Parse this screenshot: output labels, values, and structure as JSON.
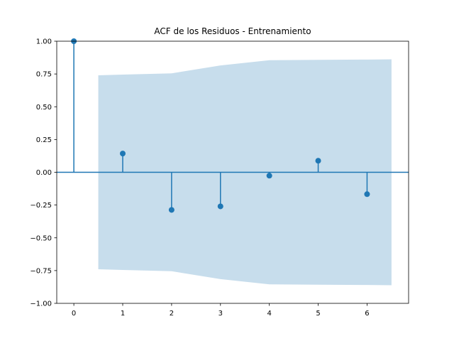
{
  "chart_data": {
    "type": "stem",
    "title": "ACF de los Residuos - Entrenamiento",
    "xlabel": "",
    "ylabel": "",
    "xlim": [
      -0.35,
      6.85
    ],
    "ylim": [
      -1.0,
      1.0
    ],
    "xticks": [
      0,
      1,
      2,
      3,
      4,
      5,
      6
    ],
    "xtick_labels": [
      "0",
      "1",
      "2",
      "3",
      "4",
      "5",
      "6"
    ],
    "yticks": [
      -1.0,
      -0.75,
      -0.5,
      -0.25,
      0.0,
      0.25,
      0.5,
      0.75,
      1.0
    ],
    "ytick_labels": [
      "−1.00",
      "−0.75",
      "−0.50",
      "−0.25",
      "0.00",
      "0.25",
      "0.50",
      "0.75",
      "1.00"
    ],
    "lags": [
      0,
      1,
      2,
      3,
      4,
      5,
      6
    ],
    "values": [
      1.0,
      0.143,
      -0.287,
      -0.26,
      -0.026,
      0.088,
      -0.167
    ],
    "confint": {
      "x": [
        0.5,
        1,
        2,
        3,
        4,
        5,
        6,
        6.5
      ],
      "upper": [
        0.74,
        0.745,
        0.755,
        0.815,
        0.855,
        0.858,
        0.86,
        0.862
      ],
      "lower": [
        -0.74,
        -0.745,
        -0.755,
        -0.815,
        -0.855,
        -0.858,
        -0.86,
        -0.862
      ]
    },
    "grid": false,
    "colors": {
      "stem": "#1f77b4",
      "band": "#1f77b4",
      "band_opacity": 0.25
    }
  }
}
